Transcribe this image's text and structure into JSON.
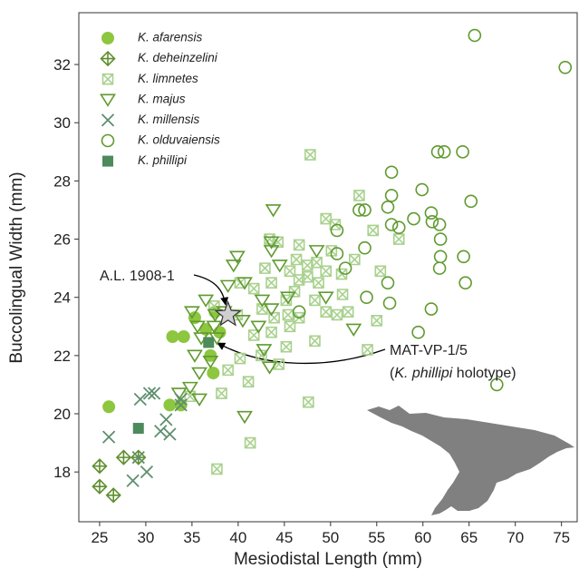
{
  "chart_data": {
    "type": "scatter",
    "x_label": "Mesiodistal Length (mm)",
    "y_label": "Buccolingual Width (mm)",
    "xlim": [
      22.75,
      76.7
    ],
    "ylim": [
      16.29,
      33.78
    ],
    "xticks": [
      25,
      30,
      35,
      40,
      45,
      50,
      55,
      60,
      65,
      70,
      75
    ],
    "yticks": [
      18,
      20,
      22,
      24,
      26,
      28,
      30,
      32
    ],
    "grid": false,
    "legend": "upper left",
    "series": [
      {
        "name": "K. afarensis",
        "color": "#8dc63f",
        "marker": "circle",
        "x": [
          26.0,
          32.6,
          33.8,
          32.9,
          34.1,
          35.3,
          37.0,
          37.3,
          36.5,
          38.0,
          37.5
        ],
        "y": [
          20.24,
          20.3,
          20.3,
          22.65,
          22.65,
          23.3,
          22.0,
          21.4,
          22.9,
          22.8,
          23.5
        ]
      },
      {
        "name": "K. deheinzelini",
        "color": "#5f8f2f",
        "marker": "diamond-plus",
        "x": [
          25.0,
          25.0,
          26.5,
          27.6,
          29.2
        ],
        "y": [
          18.2,
          17.5,
          17.2,
          18.5,
          18.5
        ]
      },
      {
        "name": "K. limnetes",
        "color": "#a9d18e",
        "marker": "square-x",
        "x": [
          47.8,
          53.1,
          49.5,
          50.5,
          54.6,
          57.4,
          43.4,
          44.3,
          46.6,
          50.1,
          52.6,
          46.3,
          47.5,
          42.9,
          49.5,
          45.6,
          55.4,
          51.2,
          47.5,
          46.6,
          48.7,
          43.6,
          40.2,
          41.7,
          51.3,
          48.3,
          45.2,
          42.6,
          49.5,
          51.9,
          50.7,
          45.4,
          43.9,
          46.6,
          39.9,
          55.0,
          45.6,
          43.6,
          41.7,
          45.2,
          48.3,
          54.0,
          42.5,
          44.4,
          40.2,
          38.9,
          41.1,
          38.2,
          47.6,
          41.3,
          37.7,
          34.8,
          37.4,
          46.1,
          48.5
        ],
        "y": [
          28.9,
          27.5,
          26.7,
          26.5,
          26.3,
          26.0,
          26.0,
          25.9,
          25.8,
          25.6,
          25.3,
          25.3,
          25.1,
          25.0,
          24.9,
          24.9,
          24.9,
          24.8,
          24.7,
          24.6,
          24.5,
          24.5,
          24.5,
          24.3,
          24.1,
          23.9,
          23.9,
          23.6,
          23.5,
          23.5,
          23.4,
          23.4,
          23.3,
          23.3,
          23.4,
          23.2,
          23.0,
          22.8,
          22.7,
          22.3,
          22.5,
          22.2,
          22.0,
          21.7,
          21.9,
          21.5,
          21.1,
          20.7,
          20.4,
          19.0,
          18.1,
          20.6,
          23.7,
          24.2,
          25.2
        ]
      },
      {
        "name": "K. majus",
        "color": "#5f9a2f",
        "marker": "triangle-down",
        "x": [
          43.8,
          43.6,
          43.6,
          48.5,
          39.9,
          39.5,
          44.5,
          38.9,
          40.7,
          45.4,
          49.5,
          36.5,
          42.6,
          43.6,
          35.0,
          37.5,
          40.5,
          42.2,
          52.5,
          37.4,
          35.6,
          36.0,
          37.7,
          42.8,
          35.3,
          37.0,
          43.4,
          35.8,
          34.8,
          33.6,
          35.8,
          40.7,
          38.5
        ],
        "y": [
          27.0,
          25.9,
          25.6,
          25.6,
          25.4,
          25.1,
          25.1,
          24.4,
          24.5,
          24.0,
          24.0,
          23.9,
          23.9,
          23.6,
          23.5,
          23.4,
          23.2,
          23.0,
          22.9,
          23.0,
          23.0,
          22.6,
          22.6,
          22.2,
          22.0,
          21.8,
          21.6,
          21.4,
          20.9,
          20.7,
          20.5,
          19.9,
          23.5
        ]
      },
      {
        "name": "K. millensis",
        "color": "#5e8f6e",
        "marker": "x",
        "x": [
          26.0,
          28.6,
          30.1,
          29.2,
          29.4,
          30.4,
          30.9,
          31.6,
          32.6,
          32.2,
          33.8,
          33.8
        ],
        "y": [
          19.2,
          17.7,
          18.0,
          18.5,
          20.5,
          20.7,
          20.7,
          19.4,
          19.3,
          19.8,
          20.3,
          20.5
        ]
      },
      {
        "name": "K. olduvaiensis",
        "color": "#5f9a2f",
        "marker": "circle-open",
        "x": [
          65.6,
          75.4,
          64.3,
          61.6,
          62.3,
          56.6,
          59.9,
          56.6,
          65.2,
          53.1,
          53.7,
          60.9,
          56.2,
          56.6,
          57.4,
          59.0,
          61.0,
          61.8,
          50.7,
          61.9,
          53.7,
          50.7,
          64.4,
          61.9,
          61.8,
          56.2,
          64.6,
          51.6,
          53.9,
          56.4,
          60.9,
          46.6,
          59.5,
          68.0
        ],
        "y": [
          33.0,
          31.9,
          29.0,
          29.0,
          29.0,
          28.3,
          27.7,
          27.5,
          27.3,
          27.0,
          27.0,
          26.9,
          27.1,
          26.5,
          26.4,
          26.7,
          26.6,
          26.5,
          26.3,
          26.0,
          25.7,
          25.5,
          25.4,
          25.4,
          25.0,
          24.5,
          24.5,
          25.0,
          24.0,
          23.8,
          23.6,
          23.5,
          22.8,
          21.0
        ]
      },
      {
        "name": "K. phillipi",
        "color": "#4d8a5c",
        "marker": "square",
        "x": [
          29.2,
          36.8
        ],
        "y": [
          19.5,
          22.45
        ]
      }
    ],
    "annotations": [
      {
        "text": "A.L. 1908-1",
        "x": 38.9,
        "y": 23.4
      },
      {
        "lines": [
          "MAT-VP-1/5",
          [
            "(",
            "K. phillipi",
            " holotype)"
          ]
        ],
        "x": 36.8,
        "y": 22.45
      }
    ]
  }
}
